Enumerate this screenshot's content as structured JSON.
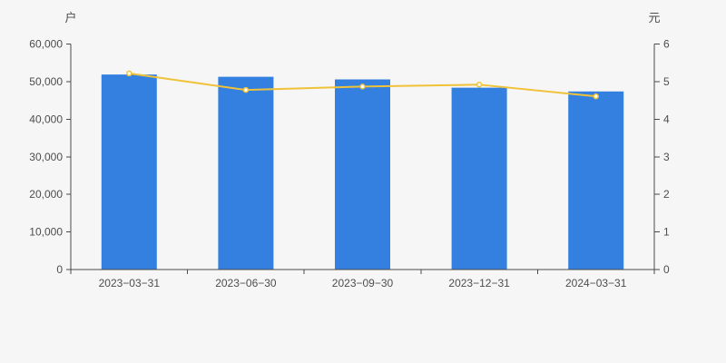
{
  "panel": {
    "background": "#f6f6f6"
  },
  "chart_data": {
    "type": "bar",
    "subtype": "bar-line-combo",
    "title": "",
    "categories": [
      "2023−03−31",
      "2023−06−30",
      "2023−09−30",
      "2023−12−31",
      "2024−03−31"
    ],
    "series": [
      {
        "type": "bar",
        "axis": "left",
        "color": "#3380e0",
        "values": [
          51900,
          51300,
          50600,
          48400,
          47400
        ]
      },
      {
        "type": "line",
        "axis": "right",
        "color": "#f0c239",
        "marker_fill": "#ffffff",
        "values": [
          5.22,
          4.78,
          4.87,
          4.92,
          4.61
        ]
      }
    ],
    "left_axis": {
      "label": "户",
      "min": 0,
      "max": 60000,
      "tick_step": 10000,
      "tick_labels": [
        "0",
        "10,000",
        "20,000",
        "30,000",
        "40,000",
        "50,000",
        "60,000"
      ]
    },
    "right_axis": {
      "label": "元",
      "min": 0,
      "max": 6,
      "tick_step": 1,
      "tick_labels": [
        "0",
        "1",
        "2",
        "3",
        "4",
        "5",
        "6"
      ]
    },
    "grid": false,
    "legend": false,
    "axis_color": "#4a4a4a",
    "text_color": "#4d4d4d"
  }
}
